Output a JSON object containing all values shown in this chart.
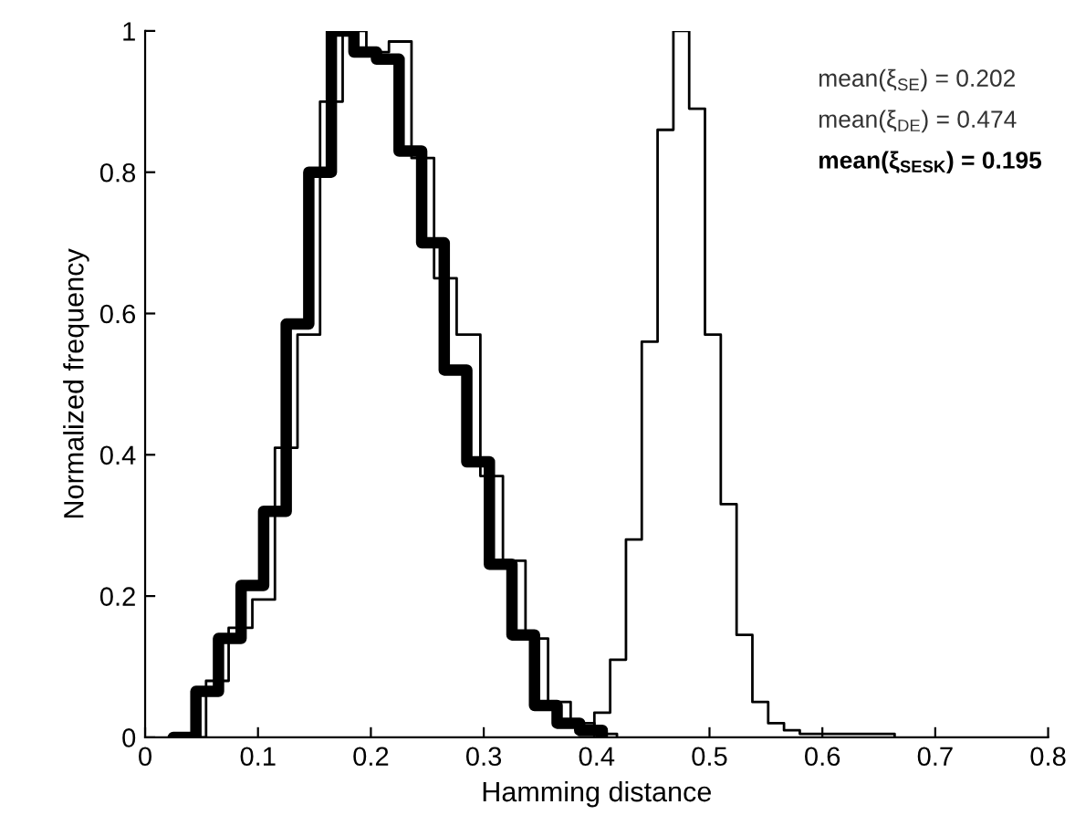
{
  "chart_data": {
    "type": "step",
    "xlabel": "Hamming distance",
    "ylabel": "Normalized frequency",
    "xlim": [
      0,
      0.8
    ],
    "xticks": [
      0,
      0.1,
      0.2,
      0.3,
      0.4,
      0.5,
      0.6,
      0.7,
      0.8
    ],
    "ylim": [
      0,
      1
    ],
    "yticks": [
      0,
      0.2,
      0.4,
      0.6,
      0.8,
      1
    ],
    "grid": false,
    "legend": false,
    "annotations": [
      "mean(ξ$_{SE}$) = 0.202",
      "mean(ξ$_{DE}$) = 0.474",
      "mean(ξ$_{SESK}$) = 0.195"
    ],
    "series": [
      {
        "color": "#000000",
        "x": [
          0.034,
          0.054,
          0.074,
          0.095,
          0.115,
          0.135,
          0.155,
          0.175,
          0.196,
          0.216,
          0.236,
          0.256,
          0.276,
          0.297,
          0.317,
          0.337,
          0.357,
          0.377,
          0.398,
          0.418
        ],
        "values": [
          0,
          0.08,
          0.155,
          0.195,
          0.41,
          0.57,
          0.9,
          1.0,
          0.97,
          0.985,
          0.82,
          0.65,
          0.57,
          0.37,
          0.25,
          0.14,
          0.05,
          0.02,
          0.005,
          0
        ]
      },
      {
        "color": "#000000",
        "x": [
          0.384,
          0.398,
          0.412,
          0.426,
          0.44,
          0.454,
          0.468,
          0.482,
          0.496,
          0.51,
          0.524,
          0.538,
          0.552,
          0.566,
          0.58,
          0.594,
          0.608,
          0.622,
          0.636,
          0.65,
          0.664
        ],
        "values": [
          0,
          0.035,
          0.11,
          0.28,
          0.56,
          0.86,
          1.0,
          0.89,
          0.57,
          0.33,
          0.145,
          0.05,
          0.02,
          0.01,
          0.005,
          0.005,
          0.005,
          0.005,
          0.005,
          0.005,
          0
        ]
      },
      {
        "color": "#000000",
        "x": [
          0.025,
          0.045,
          0.065,
          0.085,
          0.105,
          0.125,
          0.145,
          0.165,
          0.185,
          0.205,
          0.225,
          0.245,
          0.265,
          0.285,
          0.305,
          0.325,
          0.345,
          0.365,
          0.385,
          0.405
        ],
        "values": [
          0,
          0.065,
          0.14,
          0.215,
          0.32,
          0.585,
          0.8,
          1.0,
          0.97,
          0.96,
          0.83,
          0.7,
          0.52,
          0.39,
          0.245,
          0.145,
          0.045,
          0.02,
          0.01,
          0
        ]
      }
    ]
  }
}
